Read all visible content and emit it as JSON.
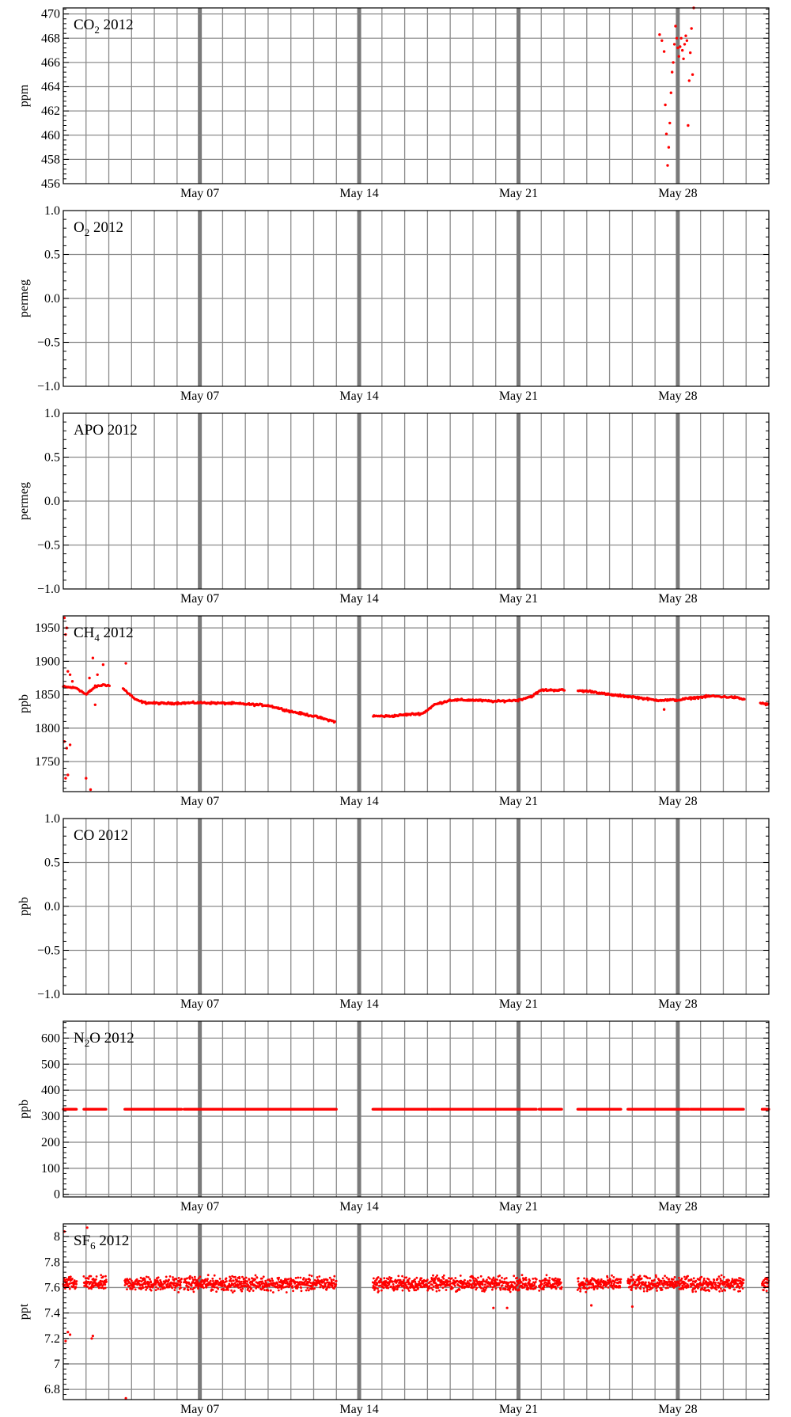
{
  "figure": {
    "x_range_days": [
      0,
      31
    ],
    "date_ticks": [
      {
        "day": 6,
        "label": "May 07"
      },
      {
        "day": 13,
        "label": "May 14"
      },
      {
        "day": 20,
        "label": "May 21"
      },
      {
        "day": 27,
        "label": "May 28"
      }
    ],
    "grid_interval_days": 1,
    "point_color": "#ff0000",
    "week_line_color": "#7a7a7a",
    "grid_color": "#8c8c8c"
  },
  "chart_data": [
    {
      "type": "scatter",
      "title_parts": [
        "CO",
        "2",
        " 2012"
      ],
      "ylabel": "ppm",
      "ylim": [
        456,
        470.5
      ],
      "yticks": [
        456,
        458,
        460,
        462,
        464,
        466,
        468,
        470
      ],
      "grid": true,
      "data_x_unit": "days after May 01 2012",
      "points": [
        [
          26.2,
          468.3
        ],
        [
          26.3,
          467.8
        ],
        [
          26.4,
          466.9
        ],
        [
          26.45,
          462.5
        ],
        [
          26.5,
          460.1
        ],
        [
          26.55,
          457.5
        ],
        [
          26.6,
          459.0
        ],
        [
          26.65,
          461.0
        ],
        [
          26.7,
          463.5
        ],
        [
          26.75,
          465.2
        ],
        [
          26.8,
          466.0
        ],
        [
          26.85,
          467.5
        ],
        [
          26.9,
          469.0
        ],
        [
          26.95,
          468.0
        ],
        [
          27.0,
          467.2
        ],
        [
          27.05,
          466.5
        ],
        [
          27.1,
          467.3
        ],
        [
          27.15,
          468.0
        ],
        [
          27.2,
          467.0
        ],
        [
          27.25,
          466.3
        ],
        [
          27.3,
          467.5
        ],
        [
          27.35,
          468.2
        ],
        [
          27.4,
          467.8
        ],
        [
          27.45,
          460.8
        ],
        [
          27.5,
          464.5
        ],
        [
          27.55,
          466.8
        ],
        [
          27.6,
          468.8
        ],
        [
          27.65,
          465.0
        ],
        [
          27.7,
          470.5
        ]
      ]
    },
    {
      "type": "scatter",
      "title_parts": [
        "O",
        "2",
        " 2012"
      ],
      "ylabel": "permeg",
      "ylim": [
        -1.0,
        1.0
      ],
      "yticks": [
        -1.0,
        -0.5,
        0.0,
        0.5,
        1.0
      ],
      "ytick_labels": [
        "−1.0",
        "−0.5",
        "0.0",
        "0.5",
        "1.0"
      ],
      "grid": true,
      "points": []
    },
    {
      "type": "scatter",
      "title_parts": [
        "APO 2012"
      ],
      "ylabel": "permeg",
      "ylim": [
        -1.0,
        1.0
      ],
      "yticks": [
        -1.0,
        -0.5,
        0.0,
        0.5,
        1.0
      ],
      "ytick_labels": [
        "−1.0",
        "−0.5",
        "0.0",
        "0.5",
        "1.0"
      ],
      "grid": true,
      "points": []
    },
    {
      "type": "scatter",
      "title_parts": [
        "CH",
        "4",
        " 2012"
      ],
      "ylabel": "ppb",
      "ylim": [
        1705,
        1968
      ],
      "yticks": [
        1750,
        1800,
        1850,
        1900,
        1950
      ],
      "grid": true,
      "trend": [
        [
          0.0,
          1862
        ],
        [
          0.6,
          1860
        ],
        [
          1.0,
          1850
        ],
        [
          1.4,
          1862
        ],
        [
          1.8,
          1865
        ],
        [
          2.6,
          1860
        ],
        [
          3.2,
          1842
        ],
        [
          3.6,
          1838
        ],
        [
          4.4,
          1837
        ],
        [
          6.0,
          1838
        ],
        [
          7.5,
          1837
        ],
        [
          9.0,
          1834
        ],
        [
          10.0,
          1825
        ],
        [
          11.0,
          1818
        ],
        [
          11.9,
          1810
        ],
        [
          13.6,
          1818
        ],
        [
          14.4,
          1818
        ],
        [
          15.0,
          1820
        ],
        [
          15.8,
          1822
        ],
        [
          16.3,
          1835
        ],
        [
          17.0,
          1842
        ],
        [
          18.0,
          1842
        ],
        [
          19.0,
          1840
        ],
        [
          20.0,
          1842
        ],
        [
          20.6,
          1848
        ],
        [
          21.0,
          1857
        ],
        [
          21.9,
          1857
        ],
        [
          22.6,
          1856
        ],
        [
          23.2,
          1855
        ],
        [
          24.0,
          1850
        ],
        [
          25.0,
          1847
        ],
        [
          26.0,
          1842
        ],
        [
          27.0,
          1842
        ],
        [
          27.6,
          1845
        ],
        [
          28.5,
          1848
        ],
        [
          29.5,
          1846
        ],
        [
          30.6,
          1838
        ],
        [
          31.0,
          1835
        ]
      ],
      "gaps": [
        [
          0.95,
          1.0
        ],
        [
          2.05,
          2.6
        ],
        [
          11.95,
          13.6
        ],
        [
          22.05,
          22.6
        ],
        [
          29.95,
          30.6
        ]
      ],
      "outliers": [
        [
          0.05,
          1965
        ],
        [
          0.15,
          1950
        ],
        [
          0.1,
          1940
        ],
        [
          0.2,
          1885
        ],
        [
          0.3,
          1880
        ],
        [
          0.4,
          1870
        ],
        [
          0.05,
          1780
        ],
        [
          0.15,
          1770
        ],
        [
          0.3,
          1775
        ],
        [
          0.1,
          1725
        ],
        [
          0.2,
          1730
        ],
        [
          1.0,
          1725
        ],
        [
          1.2,
          1708
        ],
        [
          1.15,
          1875
        ],
        [
          1.3,
          1905
        ],
        [
          1.5,
          1880
        ],
        [
          1.4,
          1835
        ],
        [
          1.75,
          1895
        ],
        [
          2.75,
          1897
        ],
        [
          26.4,
          1828
        ]
      ]
    },
    {
      "type": "scatter",
      "title_parts": [
        "CO 2012"
      ],
      "ylabel": "ppb",
      "ylim": [
        -1.0,
        1.0
      ],
      "yticks": [
        -1.0,
        -0.5,
        0.0,
        0.5,
        1.0
      ],
      "ytick_labels": [
        "−1.0",
        "−0.5",
        "0.0",
        "0.5",
        "1.0"
      ],
      "grid": true,
      "points": []
    },
    {
      "type": "scatter",
      "title_parts": [
        "N",
        "2",
        "O 2012"
      ],
      "ylabel": "ppb",
      "ylim": [
        -10,
        665
      ],
      "yticks": [
        0,
        100,
        200,
        300,
        400,
        500,
        600
      ],
      "grid": true,
      "constant_value": 327,
      "segments": [
        [
          0.0,
          0.6
        ],
        [
          0.9,
          1.9
        ],
        [
          2.7,
          5.2
        ],
        [
          5.3,
          12.0
        ],
        [
          13.6,
          16.1
        ],
        [
          16.15,
          20.8
        ],
        [
          20.9,
          21.9
        ],
        [
          22.6,
          24.5
        ],
        [
          24.8,
          27.5
        ],
        [
          27.55,
          29.9
        ],
        [
          30.7,
          31.0
        ]
      ]
    },
    {
      "type": "scatter",
      "title_parts": [
        "SF",
        "6",
        " 2012"
      ],
      "ylabel": "ppt",
      "ylim": [
        6.72,
        8.1
      ],
      "yticks": [
        6.8,
        7.0,
        7.2,
        7.4,
        7.6,
        7.8,
        8.0
      ],
      "grid": true,
      "center": 7.63,
      "spread": 0.08,
      "segments": [
        [
          0.0,
          0.6
        ],
        [
          0.9,
          1.9
        ],
        [
          2.7,
          5.2
        ],
        [
          5.3,
          12.0
        ],
        [
          13.6,
          16.1
        ],
        [
          16.15,
          20.8
        ],
        [
          20.9,
          21.9
        ],
        [
          22.6,
          24.5
        ],
        [
          24.8,
          27.5
        ],
        [
          27.55,
          29.9
        ],
        [
          30.7,
          31.0
        ]
      ],
      "outliers": [
        [
          0.05,
          8.04
        ],
        [
          0.1,
          7.18
        ],
        [
          0.2,
          7.25
        ],
        [
          0.3,
          7.23
        ],
        [
          1.05,
          8.07
        ],
        [
          1.25,
          7.2
        ],
        [
          1.3,
          7.22
        ],
        [
          2.75,
          6.73
        ],
        [
          18.9,
          7.44
        ],
        [
          19.5,
          7.44
        ],
        [
          23.2,
          7.46
        ],
        [
          25.0,
          7.45
        ]
      ]
    }
  ]
}
